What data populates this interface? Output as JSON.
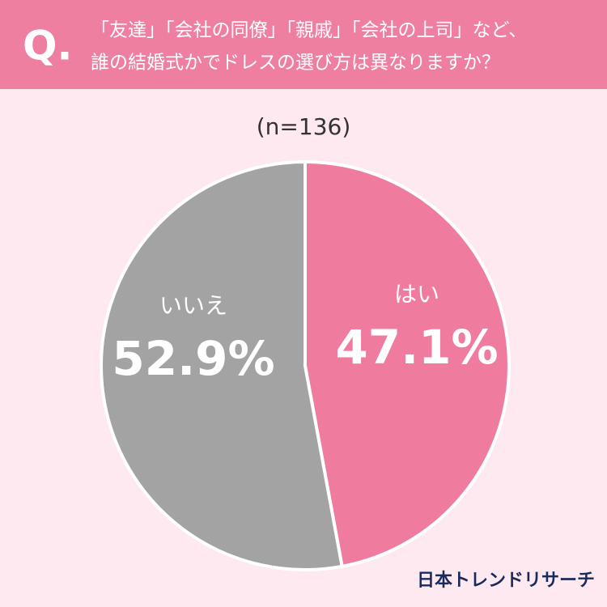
{
  "chart_data": {
    "type": "pie",
    "question_label": "Q.",
    "title": [
      "「友達」「会社の同僚」「親戚」「会社の上司」など、",
      "誰の結婚式かでドレスの選び方は異なりますか？"
    ],
    "subtitle": "(n=136)",
    "categories": [
      "はい",
      "いいえ"
    ],
    "values": [
      47.1,
      52.9
    ],
    "value_labels": [
      "47.1%",
      "52.9%"
    ],
    "colors": [
      "#ef7b9e",
      "#a3a3a3"
    ],
    "source": "日本トレンドリサーチ"
  }
}
